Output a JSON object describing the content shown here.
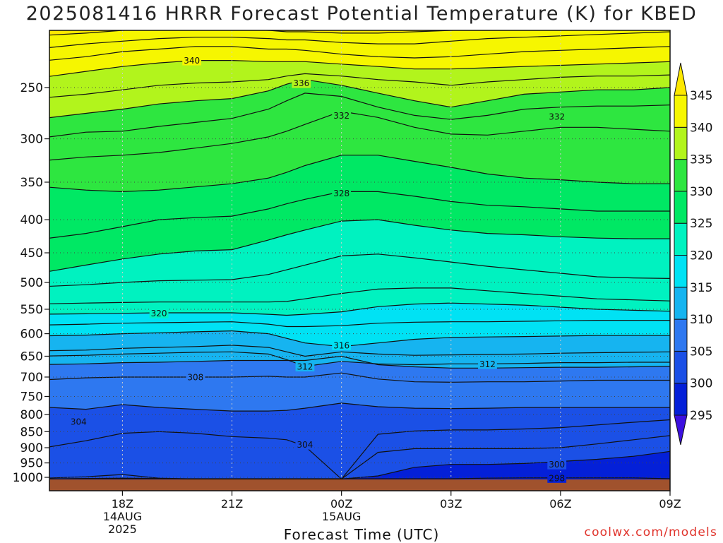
{
  "title": "2025081416 HRRR Forecast Potential Temperature (K) for KBED",
  "xlabel": "Forecast Time (UTC)",
  "credit": "coolwx.com/models",
  "chart_data": {
    "type": "contour",
    "title": "2025081416 HRRR Forecast Potential Temperature (K) for KBED",
    "xlabel": "Forecast Time (UTC)",
    "ylabel": "",
    "y_axis": "pressure (hPa), log scale, inverted",
    "ylim": [
      1000,
      200
    ],
    "y_ticks": [
      1000,
      950,
      900,
      850,
      800,
      750,
      700,
      650,
      600,
      550,
      500,
      450,
      400,
      350,
      300,
      250
    ],
    "x_hours": [
      16,
      33
    ],
    "x_ticks": [
      {
        "hour": 18,
        "label": "18Z",
        "sub1": "14AUG",
        "sub2": "2025"
      },
      {
        "hour": 21,
        "label": "21Z",
        "sub1": "",
        "sub2": ""
      },
      {
        "hour": 24,
        "label": "00Z",
        "sub1": "15AUG",
        "sub2": ""
      },
      {
        "hour": 27,
        "label": "03Z",
        "sub1": "",
        "sub2": ""
      },
      {
        "hour": 30,
        "label": "06Z",
        "sub1": "",
        "sub2": ""
      },
      {
        "hour": 33,
        "label": "09Z",
        "sub1": "",
        "sub2": ""
      }
    ],
    "grid": true,
    "colorbar": {
      "unit": "K",
      "levels": [
        295,
        300,
        305,
        310,
        315,
        320,
        325,
        330,
        335,
        340,
        345
      ],
      "colors": [
        "#3c10e0",
        "#0420d8",
        "#1b50e6",
        "#2e78f0",
        "#16b4f0",
        "#00e2f4",
        "#00f2c0",
        "#00e864",
        "#2ee640",
        "#b2f41c",
        "#f6f600",
        "#fde800"
      ]
    },
    "contour_interval": 2,
    "sample_hours": [
      15.6,
      17,
      18,
      19,
      20,
      21,
      22,
      22.5,
      23,
      24,
      25,
      26,
      27,
      28,
      29,
      30,
      31,
      32,
      33,
      33.6
    ],
    "isentropes": [
      {
        "theta": 298,
        "p": [
          1005,
          1005,
          1005,
          1005,
          1005,
          1005,
          1005,
          1005,
          1005,
          1005,
          1005,
          1005,
          1005,
          1003,
          1002,
          1002,
          1002,
          1002,
          1005,
          1005
        ]
      },
      {
        "theta": 300,
        "p": [
          1006,
          1004,
          1003,
          1004,
          1006,
          1006,
          1006,
          1006,
          1006,
          1006,
          995,
          965,
          955,
          955,
          952,
          945,
          938,
          928,
          912,
          905
        ]
      },
      {
        "theta": 302,
        "p": [
          1004,
          998,
          990,
          1003,
          1006,
          1006,
          1006,
          1006,
          1006,
          1006,
          915,
          903,
          903,
          903,
          903,
          900,
          888,
          875,
          862,
          855
        ]
      },
      {
        "theta": 304,
        "p": [
          905,
          878,
          855,
          850,
          855,
          865,
          870,
          875,
          895,
          1006,
          858,
          848,
          845,
          845,
          842,
          838,
          830,
          822,
          815,
          812
        ]
      },
      {
        "theta": 306,
        "p": [
          778,
          785,
          772,
          780,
          785,
          790,
          790,
          788,
          782,
          768,
          778,
          782,
          783,
          782,
          780,
          780,
          780,
          780,
          780,
          780
        ]
      },
      {
        "theta": 308,
        "p": [
          708,
          702,
          700,
          700,
          700,
          700,
          698,
          700,
          700,
          690,
          705,
          712,
          713,
          712,
          712,
          710,
          708,
          708,
          708,
          708
        ]
      },
      {
        "theta": 310,
        "p": [
          670,
          668,
          665,
          664,
          662,
          660,
          660,
          660,
          660,
          650,
          670,
          675,
          678,
          678,
          677,
          676,
          676,
          675,
          674,
          674
        ]
      },
      {
        "theta": 312,
        "p": [
          650,
          648,
          645,
          643,
          641,
          640,
          645,
          658,
          674,
          662,
          668,
          670,
          668,
          668,
          667,
          665,
          665,
          664,
          664,
          664
        ]
      },
      {
        "theta": 314,
        "p": [
          638,
          636,
          632,
          630,
          628,
          625,
          630,
          640,
          650,
          640,
          645,
          648,
          647,
          646,
          645,
          643,
          642,
          641,
          640,
          640
        ]
      },
      {
        "theta": 316,
        "p": [
          605,
          603,
          600,
          598,
          596,
          594,
          600,
          610,
          620,
          628,
          620,
          612,
          608,
          607,
          606,
          605,
          604,
          604,
          604,
          604
        ]
      },
      {
        "theta": 318,
        "p": [
          582,
          580,
          578,
          577,
          576,
          575,
          580,
          585,
          585,
          583,
          578,
          576,
          575,
          575,
          574,
          573,
          572,
          572,
          572,
          572
        ]
      },
      {
        "theta": 320,
        "p": [
          560,
          559,
          558,
          557,
          557,
          557,
          560,
          562,
          560,
          555,
          545,
          540,
          538,
          540,
          542,
          546,
          550,
          552,
          554,
          554
        ]
      },
      {
        "theta": 322,
        "p": [
          540,
          538,
          537,
          536,
          536,
          536,
          536,
          535,
          530,
          520,
          512,
          510,
          510,
          515,
          520,
          525,
          530,
          532,
          534,
          534
        ]
      },
      {
        "theta": 324,
        "p": [
          508,
          504,
          500,
          497,
          496,
          495,
          486,
          478,
          470,
          455,
          452,
          458,
          465,
          472,
          478,
          484,
          490,
          492,
          493,
          493
        ]
      },
      {
        "theta": 326,
        "p": [
          485,
          470,
          460,
          452,
          447,
          445,
          430,
          422,
          415,
          402,
          400,
          408,
          415,
          420,
          422,
          425,
          427,
          428,
          428,
          428
        ]
      },
      {
        "theta": 328,
        "p": [
          430,
          420,
          410,
          400,
          397,
          395,
          385,
          378,
          372,
          362,
          362,
          368,
          375,
          380,
          382,
          385,
          388,
          388,
          388,
          388
        ]
      },
      {
        "theta": 330,
        "p": [
          355,
          360,
          362,
          360,
          356,
          352,
          345,
          338,
          330,
          318,
          318,
          325,
          332,
          340,
          345,
          347,
          350,
          352,
          352,
          352
        ]
      },
      {
        "theta": 332,
        "p": [
          325,
          320,
          318,
          315,
          310,
          305,
          298,
          292,
          285,
          272,
          278,
          288,
          295,
          296,
          292,
          288,
          288,
          290,
          292,
          292
        ]
      },
      {
        "theta": 334,
        "p": [
          300,
          293,
          292,
          287,
          283,
          279,
          270,
          262,
          255,
          258,
          268,
          276,
          280,
          276,
          270,
          268,
          267,
          267,
          266,
          266
        ]
      },
      {
        "theta": 336,
        "p": [
          280,
          274,
          270,
          265,
          262,
          260,
          253,
          247,
          243,
          248,
          255,
          262,
          268,
          262,
          256,
          254,
          252,
          252,
          250,
          250
        ]
      },
      {
        "theta": 338,
        "p": [
          260,
          256,
          252,
          248,
          246,
          245,
          243,
          240,
          238,
          240,
          243,
          245,
          248,
          245,
          243,
          241,
          240,
          240,
          239,
          239
        ]
      },
      {
        "theta": 340,
        "p": [
          242,
          236,
          232,
          229,
          227,
          227,
          228,
          228,
          228,
          230,
          232,
          234,
          234,
          233,
          232,
          231,
          230,
          229,
          228,
          228
        ]
      },
      {
        "theta": 342,
        "p": [
          228,
          224,
          220,
          218,
          216,
          216,
          218,
          218,
          219,
          222,
          224,
          225,
          224,
          222,
          220,
          219,
          218,
          217,
          216,
          216
        ]
      },
      {
        "theta": 344,
        "p": [
          218,
          214,
          212,
          210,
          209,
          209,
          210,
          211,
          211,
          213,
          214,
          214,
          212,
          210,
          209,
          208,
          207,
          206,
          205,
          205
        ]
      },
      {
        "theta": 346,
        "p": [
          208,
          206,
          204,
          203,
          203,
          203,
          204,
          205,
          205,
          206,
          206,
          205,
          204,
          203,
          202,
          201,
          200,
          199,
          199,
          199
        ]
      }
    ],
    "contour_labels": [
      {
        "value": "340",
        "hour": 19.9,
        "p": 227
      },
      {
        "value": "336",
        "hour": 22.9,
        "p": 246
      },
      {
        "value": "332",
        "hour": 24.0,
        "p": 276
      },
      {
        "value": "332",
        "hour": 29.9,
        "p": 277
      },
      {
        "value": "328",
        "hour": 24.0,
        "p": 364
      },
      {
        "value": "320",
        "hour": 19.0,
        "p": 558
      },
      {
        "value": "316",
        "hour": 24.0,
        "p": 625
      },
      {
        "value": "312",
        "hour": 23.0,
        "p": 674
      },
      {
        "value": "312",
        "hour": 28.0,
        "p": 668
      },
      {
        "value": "308",
        "hour": 20.0,
        "p": 700
      },
      {
        "value": "304",
        "hour": 16.8,
        "p": 820
      },
      {
        "value": "304",
        "hour": 23.0,
        "p": 890
      },
      {
        "value": "300",
        "hour": 29.9,
        "p": 955
      },
      {
        "value": "298",
        "hour": 29.9,
        "p": 1002
      }
    ]
  }
}
